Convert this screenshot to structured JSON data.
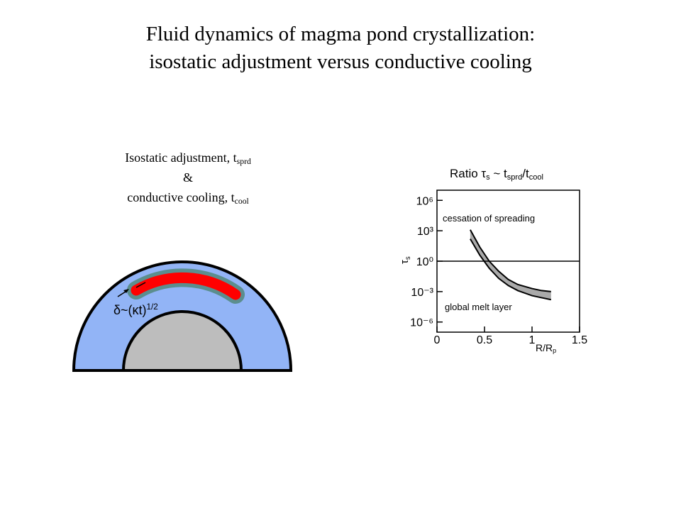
{
  "title": [
    "Fluid dynamics of magma pond crystallization:",
    "isostatic adjustment versus conductive cooling"
  ],
  "diagram": {
    "caption": [
      {
        "text": "Isostatic adjustment, t",
        "sub": "sprd"
      },
      {
        "text": "&"
      },
      {
        "text": "conductive cooling, t",
        "sub": "cool"
      }
    ],
    "label": {
      "text": "δ~(κt)",
      "sup": "1/2"
    }
  },
  "chart_data": {
    "type": "line",
    "title": [
      {
        "text": "Ratio τ",
        "sub": "s"
      },
      {
        "text": " ~ t",
        "sub": "sprd"
      },
      {
        "text": "/t",
        "sub": "cool"
      }
    ],
    "x_label": {
      "text": "R/R",
      "sub": "p"
    },
    "y_label": {
      "text": "τ",
      "sub": "s"
    },
    "x": [
      0.35,
      0.45,
      0.55,
      0.65,
      0.75,
      0.85,
      1.0,
      1.1,
      1.2
    ],
    "series": [
      {
        "color": "#000000",
        "values": [
          1259,
          25.1,
          1,
          0.1,
          0.0158,
          0.005,
          0.002,
          0.00126,
          0.001
        ]
      },
      {
        "color": "#000000",
        "values": [
          158,
          3.98,
          0.2,
          0.02,
          0.004,
          0.00126,
          0.0004,
          0.00025,
          0.00016
        ]
      }
    ],
    "fill_color": "#aaaaaa",
    "xlim": [
      0,
      1.5
    ],
    "xticks": [
      0,
      0.5,
      1,
      1.5
    ],
    "ylim": [
      1e-07,
      10000000.0
    ],
    "log_y": true,
    "yticks": [
      {
        "value": 1000000.0,
        "label": "10⁶"
      },
      {
        "value": 1000,
        "label": "10³"
      },
      {
        "value": 1,
        "label": "10⁰"
      },
      {
        "value": 0.001,
        "label": "10⁻³"
      },
      {
        "value": 1e-06,
        "label": "10⁻⁶"
      }
    ],
    "hline": 1,
    "annotations": [
      "cessation of spreading",
      "global melt layer"
    ]
  }
}
